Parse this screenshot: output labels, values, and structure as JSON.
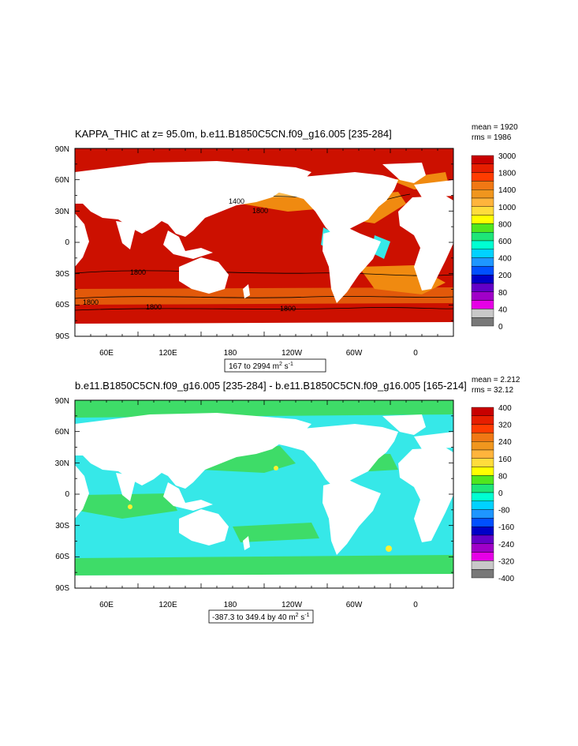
{
  "colors": {
    "ocean_high": "#cc1000",
    "ocean_mid": "#f08a10",
    "ocean_light": "#fcba50",
    "diff_ocean": "#36e8e8",
    "diff_pos": "#3edc68",
    "land": "#ffffff"
  },
  "panels": [
    {
      "title": "KAPPA_THIC at z=  95.0m, b.e11.B1850C5CN.f09_g16.005 [235-284]",
      "stats": {
        "mean": "mean = 1920",
        "rms": "rms = 1986"
      },
      "lat_labels": [
        "90N",
        "60N",
        "30N",
        "0",
        "30S",
        "60S",
        "90S"
      ],
      "lon_labels": [
        "60E",
        "120E",
        "180",
        "120W",
        "60W",
        "0"
      ],
      "range_label": {
        "text": "167 to 2994 m",
        "sup1": "2",
        "mid": " s",
        "sup2": "-1"
      },
      "contour_labels": [
        "1400",
        "1800",
        "1800",
        "1800",
        "1800",
        "1800"
      ],
      "colorbar": {
        "labels": [
          "3000",
          "1800",
          "1400",
          "1000",
          "800",
          "600",
          "400",
          "200",
          "80",
          "40",
          "0"
        ],
        "colors": [
          "#c80000",
          "#e61e00",
          "#ff3c00",
          "#f07814",
          "#f0961e",
          "#ffb43c",
          "#ffdc3c",
          "#ffff00",
          "#50e61e",
          "#1ee678",
          "#00ffd2",
          "#00d2ff",
          "#1e96ff",
          "#0050ff",
          "#0000c8",
          "#6400c8",
          "#a000c8",
          "#e600e6",
          "#c8c8c8",
          "#787878"
        ]
      }
    },
    {
      "title": "b.e11.B1850C5CN.f09_g16.005 [235-284] - b.e11.B1850C5CN.f09_g16.005 [165-214]",
      "stats": {
        "mean": "mean = 2.212",
        "rms": "rms = 32.12"
      },
      "lat_labels": [
        "90N",
        "60N",
        "30N",
        "0",
        "30S",
        "60S",
        "90S"
      ],
      "lon_labels": [
        "60E",
        "120E",
        "180",
        "120W",
        "60W",
        "0"
      ],
      "range_label": {
        "text": "-387.3 to 349.4 by 40 m",
        "sup1": "2",
        "mid": " s",
        "sup2": "-1"
      },
      "contour_labels": [],
      "colorbar": {
        "labels": [
          "400",
          "320",
          "240",
          "160",
          "80",
          "0",
          "-80",
          "-160",
          "-240",
          "-320",
          "-400"
        ],
        "colors": [
          "#c80000",
          "#e61e00",
          "#ff3c00",
          "#f07814",
          "#f0961e",
          "#ffb43c",
          "#ffdc3c",
          "#ffff00",
          "#50e61e",
          "#1ee678",
          "#00ffd2",
          "#00d2ff",
          "#1e96ff",
          "#0050ff",
          "#0000c8",
          "#6400c8",
          "#a000c8",
          "#e600e6",
          "#c8c8c8",
          "#787878"
        ]
      }
    }
  ]
}
